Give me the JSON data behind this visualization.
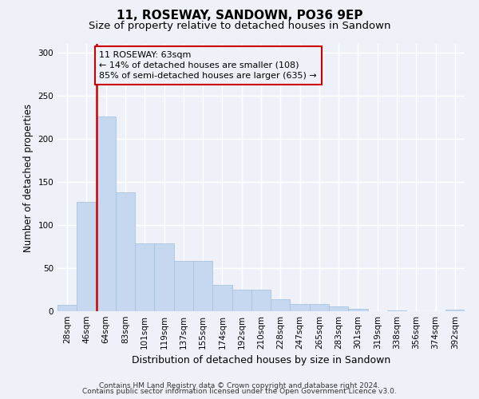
{
  "title": "11, ROSEWAY, SANDOWN, PO36 9EP",
  "subtitle": "Size of property relative to detached houses in Sandown",
  "xlabel": "Distribution of detached houses by size in Sandown",
  "ylabel": "Number of detached properties",
  "bar_labels": [
    "28sqm",
    "46sqm",
    "64sqm",
    "83sqm",
    "101sqm",
    "119sqm",
    "137sqm",
    "155sqm",
    "174sqm",
    "192sqm",
    "210sqm",
    "228sqm",
    "247sqm",
    "265sqm",
    "283sqm",
    "301sqm",
    "319sqm",
    "338sqm",
    "356sqm",
    "374sqm",
    "392sqm"
  ],
  "bar_values": [
    7,
    127,
    226,
    138,
    79,
    79,
    58,
    58,
    31,
    25,
    25,
    14,
    8,
    8,
    6,
    3,
    0,
    1,
    0,
    0,
    2
  ],
  "bar_color": "#c5d8f0",
  "bar_edge_color": "#a8c4e0",
  "vline_x_idx": 1.5,
  "vline_color": "#cc0000",
  "annotation_text": "11 ROSEWAY: 63sqm\n← 14% of detached houses are smaller (108)\n85% of semi-detached houses are larger (635) →",
  "annotation_box_edgecolor": "#cc0000",
  "ylim": [
    0,
    310
  ],
  "yticks": [
    0,
    50,
    100,
    150,
    200,
    250,
    300
  ],
  "footer1": "Contains HM Land Registry data © Crown copyright and database right 2024.",
  "footer2": "Contains public sector information licensed under the Open Government Licence v3.0.",
  "background_color": "#eef2f8",
  "grid_color": "#ffffff",
  "title_fontsize": 11,
  "subtitle_fontsize": 9.5,
  "ylabel_fontsize": 8.5,
  "xlabel_fontsize": 9,
  "tick_fontsize": 7.5,
  "footer_fontsize": 6.5,
  "annotation_fontsize": 8
}
